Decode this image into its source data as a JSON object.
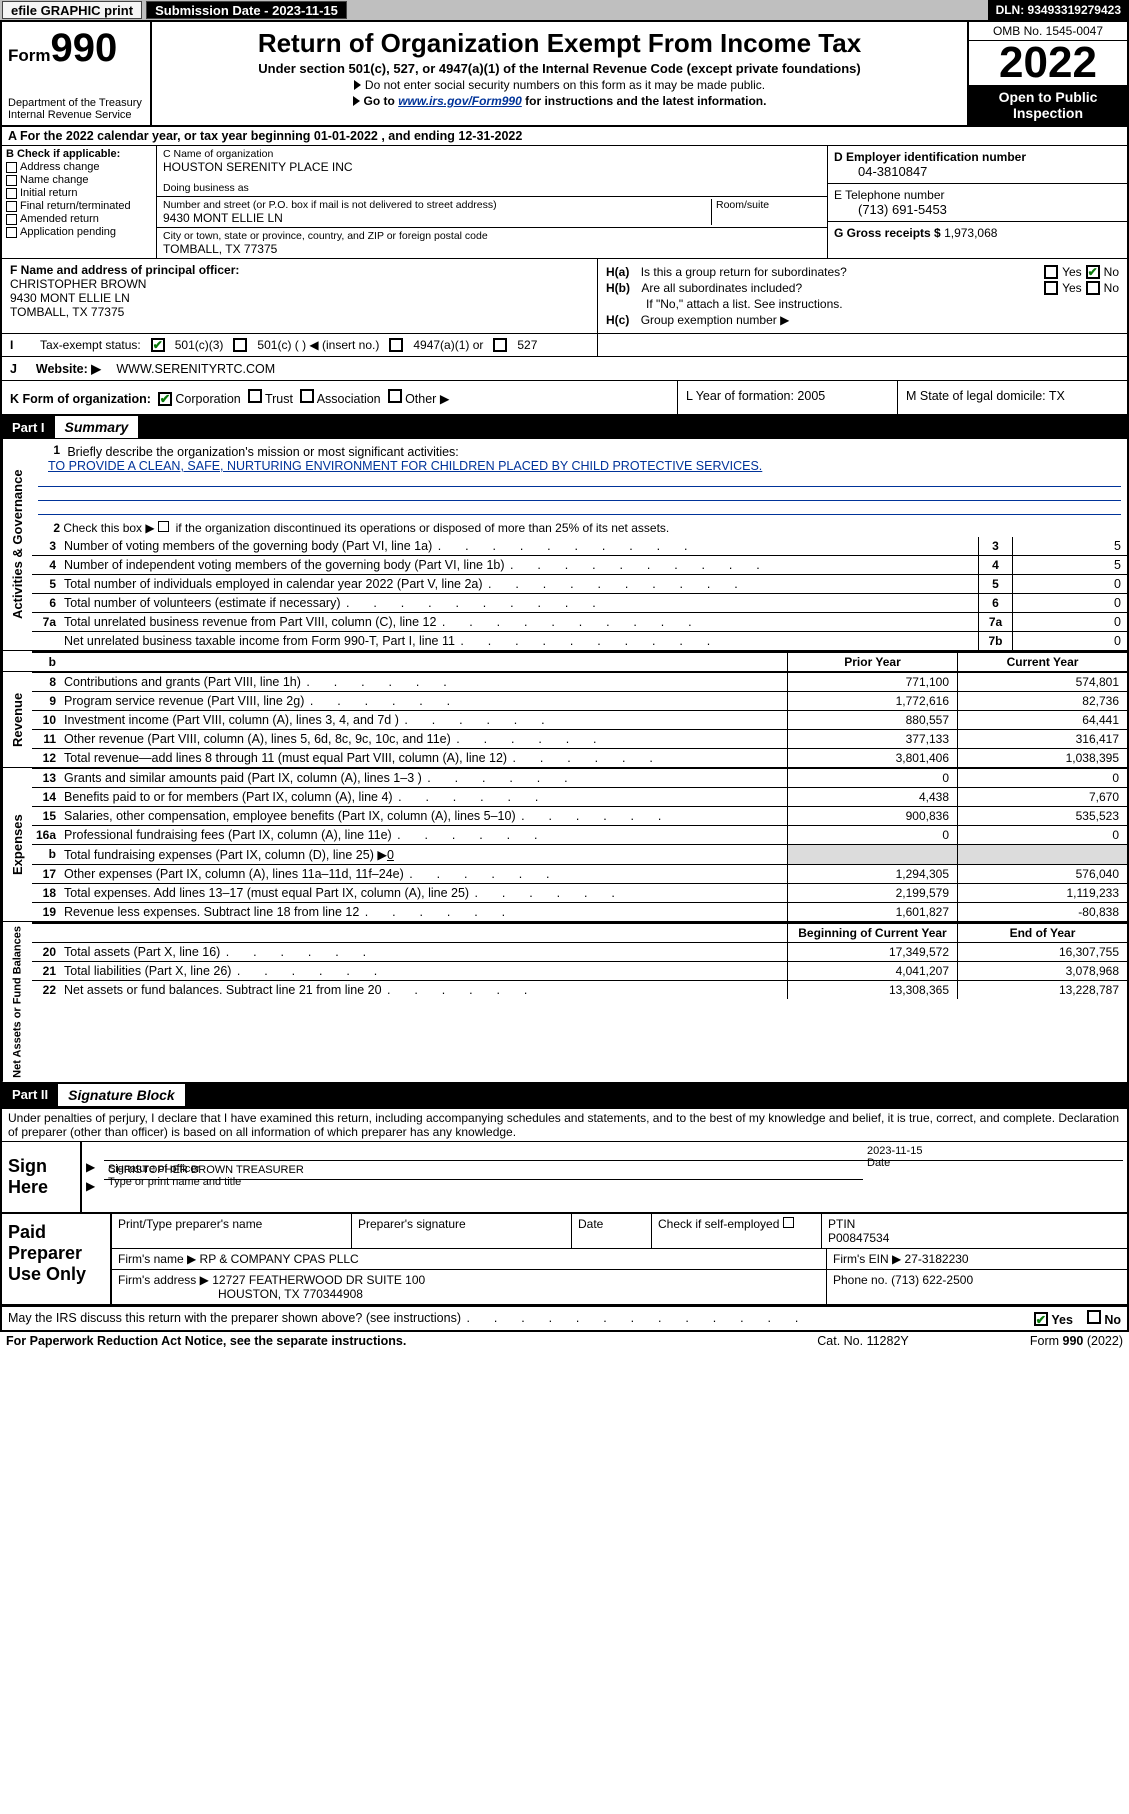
{
  "topbar": {
    "efile": "efile GRAPHIC print",
    "sub_label": "Submission Date - 2023-11-15",
    "dln": "DLN: 93493319279423"
  },
  "header": {
    "form_word": "Form",
    "form_num": "990",
    "dept": "Department of the Treasury\nInternal Revenue Service",
    "title": "Return of Organization Exempt From Income Tax",
    "sub1": "Under section 501(c), 527, or 4947(a)(1) of the Internal Revenue Code (except private foundations)",
    "sub2": "Do not enter social security numbers on this form as it may be made public.",
    "sub3a": "Go to ",
    "sub3_link": "www.irs.gov/Form990",
    "sub3b": " for instructions and the latest information.",
    "omb": "OMB No. 1545-0047",
    "year": "2022",
    "opi": "Open to Public Inspection"
  },
  "rowA": "A For the 2022 calendar year, or tax year beginning 01-01-2022    , and ending 12-31-2022",
  "B": {
    "label": "B Check if applicable:",
    "opts": [
      "Address change",
      "Name change",
      "Initial return",
      "Final return/terminated",
      "Amended return",
      "Application pending"
    ]
  },
  "C": {
    "name_label": "C Name of organization",
    "name": "HOUSTON SERENITY PLACE INC",
    "dba_label": "Doing business as",
    "dba": "",
    "addr_label": "Number and street (or P.O. box if mail is not delivered to street address)",
    "room_label": "Room/suite",
    "addr": "9430 MONT ELLIE LN",
    "city_label": "City or town, state or province, country, and ZIP or foreign postal code",
    "city": "TOMBALL, TX  77375"
  },
  "D": {
    "label": "D Employer identification number",
    "value": "04-3810847"
  },
  "E": {
    "label": "E Telephone number",
    "value": "(713) 691-5453"
  },
  "G": {
    "label": "G Gross receipts $",
    "value": "1,973,068"
  },
  "F": {
    "label": "F  Name and address of principal officer:",
    "name": "CHRISTOPHER BROWN",
    "addr1": "9430 MONT ELLIE LN",
    "addr2": "TOMBALL, TX  77375"
  },
  "I": {
    "label": "Tax-exempt status:",
    "opt1": "501(c)(3)",
    "opt2": "501(c) (  ) ◀ (insert no.)",
    "opt3": "4947(a)(1) or",
    "opt4": "527"
  },
  "H": {
    "a": "Is this a group return for subordinates?",
    "b": "Are all subordinates included?",
    "note": "If \"No,\" attach a list. See instructions.",
    "c": "Group exemption number ▶",
    "yes": "Yes",
    "no": "No"
  },
  "J": {
    "label": "Website: ▶",
    "value": "WWW.SERENITYRTC.COM"
  },
  "K": {
    "label": "K Form of organization:",
    "opts": [
      "Corporation",
      "Trust",
      "Association",
      "Other ▶"
    ],
    "L": "L Year of formation: 2005",
    "M": "M State of legal domicile: TX"
  },
  "partI": {
    "num": "Part I",
    "title": "Summary"
  },
  "gov": {
    "vlabel": "Activities & Governance",
    "l1": "Briefly describe the organization's mission or most significant activities:",
    "l1v": "TO PROVIDE A CLEAN, SAFE, NURTURING ENVIRONMENT FOR CHILDREN PLACED BY CHILD PROTECTIVE SERVICES.",
    "l2": "Check this box ▶        if the organization discontinued its operations or disposed of more than 25% of its net assets.",
    "rows": [
      {
        "n": "3",
        "t": "Number of voting members of the governing body (Part VI, line 1a)",
        "cn": "3",
        "cv": "5"
      },
      {
        "n": "4",
        "t": "Number of independent voting members of the governing body (Part VI, line 1b)",
        "cn": "4",
        "cv": "5"
      },
      {
        "n": "5",
        "t": "Total number of individuals employed in calendar year 2022 (Part V, line 2a)",
        "cn": "5",
        "cv": "0"
      },
      {
        "n": "6",
        "t": "Total number of volunteers (estimate if necessary)",
        "cn": "6",
        "cv": "0"
      },
      {
        "n": "7a",
        "t": "Total unrelated business revenue from Part VIII, column (C), line 12",
        "cn": "7a",
        "cv": "0"
      },
      {
        "n": "",
        "t": "Net unrelated business taxable income from Form 990-T, Part I, line 11",
        "cn": "7b",
        "cv": "0"
      }
    ]
  },
  "col_head": {
    "b": "b",
    "py": "Prior Year",
    "cy": "Current Year"
  },
  "rev": {
    "vlabel": "Revenue",
    "rows": [
      {
        "n": "8",
        "t": "Contributions and grants (Part VIII, line 1h)",
        "p": "771,100",
        "c": "574,801"
      },
      {
        "n": "9",
        "t": "Program service revenue (Part VIII, line 2g)",
        "p": "1,772,616",
        "c": "82,736"
      },
      {
        "n": "10",
        "t": "Investment income (Part VIII, column (A), lines 3, 4, and 7d )",
        "p": "880,557",
        "c": "64,441"
      },
      {
        "n": "11",
        "t": "Other revenue (Part VIII, column (A), lines 5, 6d, 8c, 9c, 10c, and 11e)",
        "p": "377,133",
        "c": "316,417"
      },
      {
        "n": "12",
        "t": "Total revenue—add lines 8 through 11 (must equal Part VIII, column (A), line 12)",
        "p": "3,801,406",
        "c": "1,038,395"
      }
    ]
  },
  "exp": {
    "vlabel": "Expenses",
    "rows": [
      {
        "n": "13",
        "t": "Grants and similar amounts paid (Part IX, column (A), lines 1–3 )",
        "p": "0",
        "c": "0"
      },
      {
        "n": "14",
        "t": "Benefits paid to or for members (Part IX, column (A), line 4)",
        "p": "4,438",
        "c": "7,670"
      },
      {
        "n": "15",
        "t": "Salaries, other compensation, employee benefits (Part IX, column (A), lines 5–10)",
        "p": "900,836",
        "c": "535,523"
      },
      {
        "n": "16a",
        "t": "Professional fundraising fees (Part IX, column (A), line 11e)",
        "p": "0",
        "c": "0"
      }
    ],
    "l16b_n": "b",
    "l16b": "Total fundraising expenses (Part IX, column (D), line 25) ▶",
    "l16b_v": "0",
    "rows2": [
      {
        "n": "17",
        "t": "Other expenses (Part IX, column (A), lines 11a–11d, 11f–24e)",
        "p": "1,294,305",
        "c": "576,040"
      },
      {
        "n": "18",
        "t": "Total expenses. Add lines 13–17 (must equal Part IX, column (A), line 25)",
        "p": "2,199,579",
        "c": "1,119,233"
      },
      {
        "n": "19",
        "t": "Revenue less expenses. Subtract line 18 from line 12",
        "p": "1,601,827",
        "c": "-80,838"
      }
    ]
  },
  "na": {
    "vlabel": "Net Assets or Fund Balances",
    "head": {
      "b": "Beginning of Current Year",
      "e": "End of Year"
    },
    "rows": [
      {
        "n": "20",
        "t": "Total assets (Part X, line 16)",
        "p": "17,349,572",
        "c": "16,307,755"
      },
      {
        "n": "21",
        "t": "Total liabilities (Part X, line 26)",
        "p": "4,041,207",
        "c": "3,078,968"
      },
      {
        "n": "22",
        "t": "Net assets or fund balances. Subtract line 21 from line 20",
        "p": "13,308,365",
        "c": "13,228,787"
      }
    ]
  },
  "partII": {
    "num": "Part II",
    "title": "Signature Block"
  },
  "penalty": "Under penalties of perjury, I declare that I have examined this return, including accompanying schedules and statements, and to the best of my knowledge and belief, it is true, correct, and complete. Declaration of preparer (other than officer) is based on all information of which preparer has any knowledge.",
  "sign": {
    "label": "Sign Here",
    "sig_label": "Signature of officer",
    "date_label": "Date",
    "date": "2023-11-15",
    "name": "CHRISTOPHER BROWN  TREASURER",
    "name_label": "Type or print name and title"
  },
  "prep": {
    "label": "Paid Preparer Use Only",
    "h": [
      "Print/Type preparer's name",
      "Preparer's signature",
      "Date"
    ],
    "check": "Check         if self-employed",
    "ptin_l": "PTIN",
    "ptin": "P00847534",
    "firm_l": "Firm's name    ▶",
    "firm": "RP & COMPANY CPAS PLLC",
    "ein_l": "Firm's EIN ▶",
    "ein": "27-3182230",
    "addr_l": "Firm's address ▶",
    "addr1": "12727 FEATHERWOOD DR SUITE 100",
    "addr2": "HOUSTON, TX  770344908",
    "phone_l": "Phone no.",
    "phone": "(713) 622-2500"
  },
  "may": {
    "q": "May the IRS discuss this return with the preparer shown above? (see instructions)",
    "yes": "Yes",
    "no": "No"
  },
  "foot": {
    "l": "For Paperwork Reduction Act Notice, see the separate instructions.",
    "m": "Cat. No. 11282Y",
    "r": "Form 990 (2022)"
  },
  "colors": {
    "link": "#003399",
    "check": "#0a7a0a",
    "greybar": "#bfbfbf"
  }
}
